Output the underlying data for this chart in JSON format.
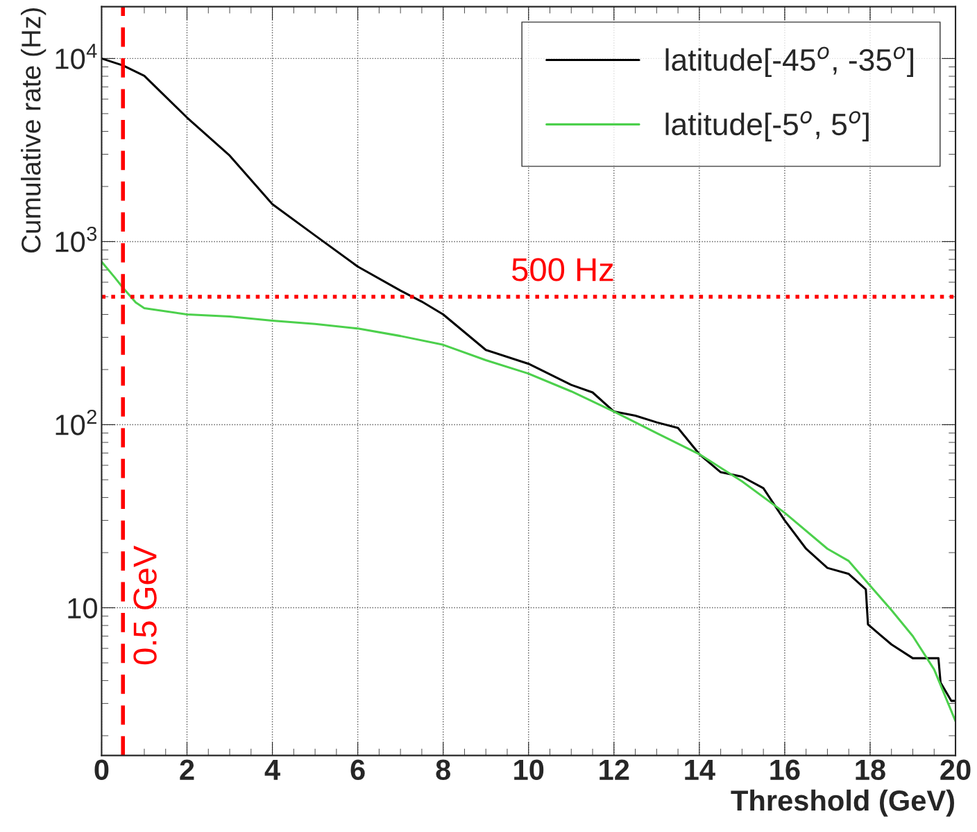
{
  "chart_data": {
    "type": "line",
    "xlabel": "Threshold (GeV)",
    "ylabel": "Cumulative rate (Hz)",
    "log": "y",
    "grid": true,
    "legend": "top right",
    "xlim": [
      0,
      20
    ],
    "ylim": [
      1.56,
      19200
    ],
    "xticks": [
      0,
      2,
      4,
      6,
      8,
      10,
      12,
      14,
      16,
      18,
      20
    ],
    "yticks": [
      {
        "value": 10,
        "label": "10"
      },
      {
        "value": 100,
        "label": "10$^{2}$"
      },
      {
        "value": 1000,
        "label": "10$^{3}$"
      },
      {
        "value": 10000,
        "label": "10$^{4}$"
      }
    ],
    "series": [
      {
        "name": "latitude[-45$^{o}$, -35$^{o}$]",
        "color": "#000000",
        "x": [
          0,
          0.5,
          1,
          2,
          3,
          4,
          5,
          6,
          7,
          7.5,
          8,
          9,
          10,
          11,
          11.5,
          12,
          12.5,
          13,
          13.5,
          14,
          14.5,
          15,
          15.5,
          16,
          16.5,
          17,
          17.5,
          17.9,
          17.95,
          18.5,
          19,
          19.6,
          19.65,
          19.9,
          20
        ],
        "values": [
          10000,
          9170,
          8040,
          4760,
          2950,
          1600,
          1080,
          730,
          540,
          470,
          400,
          256,
          215,
          165,
          150,
          118,
          112,
          103,
          96,
          69,
          55,
          52,
          45,
          30,
          21,
          16.5,
          15.3,
          12.6,
          8.1,
          6.3,
          5.3,
          5.3,
          3.9,
          3.1,
          3.1
        ]
      },
      {
        "name": "latitude[-5$^{o}$, 5$^{o}$]",
        "color": "#4cd04c",
        "x": [
          0,
          0.3,
          0.5,
          0.8,
          1,
          2,
          3,
          4,
          5,
          6,
          7,
          8,
          9,
          10,
          11,
          12,
          13,
          14,
          15,
          16,
          17,
          17.5,
          18,
          18.5,
          19,
          19.5,
          20
        ],
        "values": [
          776,
          640,
          560,
          465,
          433,
          400,
          390,
          370,
          355,
          335,
          305,
          273,
          225,
          190,
          152,
          118,
          90,
          69,
          49,
          33,
          21,
          18,
          13.2,
          9.7,
          7.0,
          4.6,
          2.4
        ]
      }
    ],
    "ref_lines": [
      {
        "axis": "x",
        "value": 0.5,
        "label": "0.5 GeV",
        "color": "#ff0000",
        "line_style": "dashed"
      },
      {
        "axis": "y",
        "value": 500,
        "label": "500 Hz",
        "color": "#ff0000",
        "line_style": "dotted"
      }
    ]
  }
}
